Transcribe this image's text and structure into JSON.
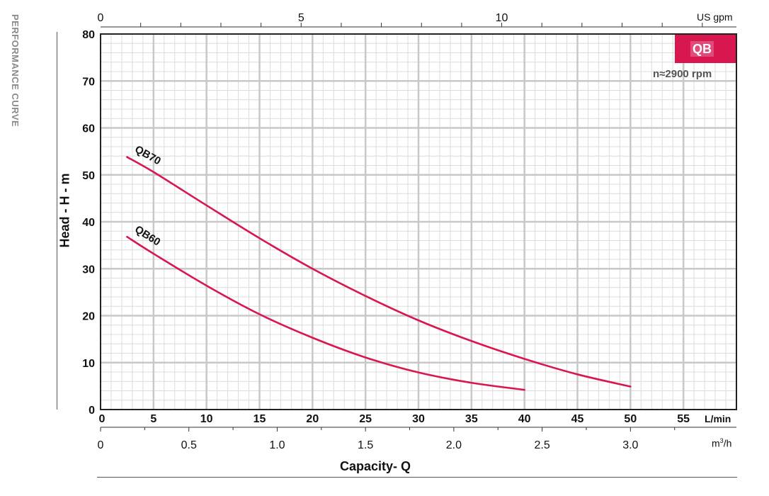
{
  "header": {
    "side_label": "PERFORMANCE CURVE",
    "series_badge": "QB",
    "speed": "n≈2900 rpm"
  },
  "axes": {
    "ylabel": "Head - H - m",
    "xlabel": "Capacity- Q",
    "x_unit_lmin": "L/min",
    "x_unit_gpm": "US gpm",
    "x_unit_m3h_base": "m",
    "x_unit_m3h_sup": "3",
    "x_unit_m3h_tail": "/h"
  },
  "colors": {
    "curve": "#d8174f",
    "badge": "#d8174f",
    "grid_major": "#c8c8c8",
    "grid_minor": "#dcdcdc"
  },
  "chart_data": {
    "type": "line",
    "title": "",
    "xlabel": "Capacity- Q",
    "ylabel": "Head - H - m",
    "xlim": [
      0,
      60
    ],
    "ylim": [
      0,
      80
    ],
    "x_unit": "L/min",
    "x_ticks": [
      0,
      5,
      10,
      15,
      20,
      25,
      30,
      35,
      40,
      45,
      50,
      55
    ],
    "y_ticks": [
      0,
      10,
      20,
      30,
      40,
      50,
      60,
      70,
      80
    ],
    "top_axis": {
      "unit": "US gpm",
      "ticks": [
        0,
        5,
        10
      ]
    },
    "bottom_axis_m3h": {
      "ticks": [
        "0",
        "0.5",
        "1.0",
        "1.5",
        "2.0",
        "2.5",
        "3.0"
      ],
      "values": [
        0,
        0.5,
        1.0,
        1.5,
        2.0,
        2.5,
        3.0
      ]
    },
    "grid": true,
    "series": [
      {
        "name": "QB70",
        "x": [
          2.5,
          5,
          10,
          15,
          20,
          25,
          30,
          35,
          40,
          45,
          50
        ],
        "y": [
          53.8,
          50.6,
          43.5,
          36.5,
          30.0,
          24.2,
          19.0,
          14.6,
          10.8,
          7.5,
          4.9
        ]
      },
      {
        "name": "QB60",
        "x": [
          2.5,
          5,
          10,
          15,
          20,
          25,
          30,
          35,
          40
        ],
        "y": [
          36.8,
          33.2,
          26.4,
          20.3,
          15.3,
          11.1,
          7.9,
          5.7,
          4.2
        ]
      }
    ]
  }
}
